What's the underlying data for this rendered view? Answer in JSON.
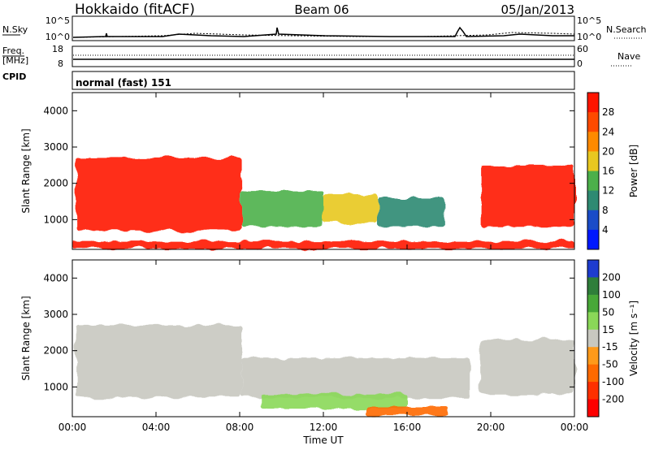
{
  "header": {
    "station": "Hokkaido (fitACF)",
    "beam": "Beam 06",
    "date": "05/Jan/2013"
  },
  "noise_panel": {
    "left_label": "N.Sky",
    "right_label": "N.Search",
    "tick_top": "10^5",
    "tick_bottom": "10^0"
  },
  "freq_panel": {
    "left_label_1": "Freq.",
    "left_label_2": "[MHz]",
    "left_tick_top": "18",
    "left_tick_bottom": "8",
    "right_label": "Nave",
    "right_tick_top": "60",
    "right_tick_bottom": "0"
  },
  "cpid_panel": {
    "label": "CPID",
    "value": "normal (fast) 151"
  },
  "chart_data": [
    {
      "type": "heatmap",
      "title": "Power",
      "ylabel": "Slant Range [km]",
      "ylim": [
        180,
        4500
      ],
      "yticks": [
        "1000",
        "2000",
        "3000",
        "4000"
      ],
      "xlim": [
        "00:00",
        "24:00"
      ],
      "colorbar_label": "Power [dB]",
      "colorbar_ticks": [
        "4",
        "8",
        "12",
        "16",
        "20",
        "24",
        "28"
      ],
      "colorbar_colors": [
        "#0018ff",
        "#1a4cc8",
        "#2e8a72",
        "#4cb04a",
        "#e8c820",
        "#ff8a00",
        "#ff4a00",
        "#ff1500"
      ],
      "regions": [
        {
          "x": [
            0.2,
            8.1
          ],
          "y": [
            700,
            2700
          ],
          "value": 28
        },
        {
          "x": [
            8.1,
            12.0
          ],
          "y": [
            800,
            1800
          ],
          "value": 14
        },
        {
          "x": [
            12.0,
            14.6
          ],
          "y": [
            900,
            1700
          ],
          "value": 18
        },
        {
          "x": [
            14.6,
            17.8
          ],
          "y": [
            800,
            1600
          ],
          "value": 8
        },
        {
          "x": [
            19.5,
            24.0
          ],
          "y": [
            800,
            2500
          ],
          "value": 28
        },
        {
          "x": [
            0.0,
            24.0
          ],
          "y": [
            200,
            400
          ],
          "value": 28
        }
      ]
    },
    {
      "type": "heatmap",
      "title": "Velocity",
      "ylabel": "Slant Range [km]",
      "ylim": [
        180,
        4500
      ],
      "yticks": [
        "1000",
        "2000",
        "3000",
        "4000"
      ],
      "xlim": [
        "00:00",
        "24:00"
      ],
      "xticks": [
        "00:00",
        "04:00",
        "08:00",
        "12:00",
        "16:00",
        "20:00",
        "00:00"
      ],
      "xlabel": "Time UT",
      "colorbar_label": "Velocity [m s⁻¹]",
      "colorbar_ticks": [
        "200",
        "100",
        "50",
        "15",
        "-15",
        "-50",
        "-100",
        "-200"
      ],
      "colorbar_colors": [
        "#1e3ccf",
        "#2f7e3a",
        "#48a838",
        "#8ad858",
        "#c8c8c0",
        "#ff9a1a",
        "#ff6a00",
        "#ff3000",
        "#ff0000"
      ],
      "regions": [
        {
          "x": [
            0.2,
            8.1
          ],
          "y": [
            700,
            2700
          ],
          "value": 0
        },
        {
          "x": [
            8.1,
            19.0
          ],
          "y": [
            700,
            1800
          ],
          "value": 0
        },
        {
          "x": [
            19.5,
            24.0
          ],
          "y": [
            800,
            2300
          ],
          "value": 0
        },
        {
          "x": [
            9.0,
            16.0
          ],
          "y": [
            400,
            800
          ],
          "value": 50
        },
        {
          "x": [
            14.0,
            18.0
          ],
          "y": [
            200,
            450
          ],
          "value": -50
        }
      ]
    }
  ]
}
